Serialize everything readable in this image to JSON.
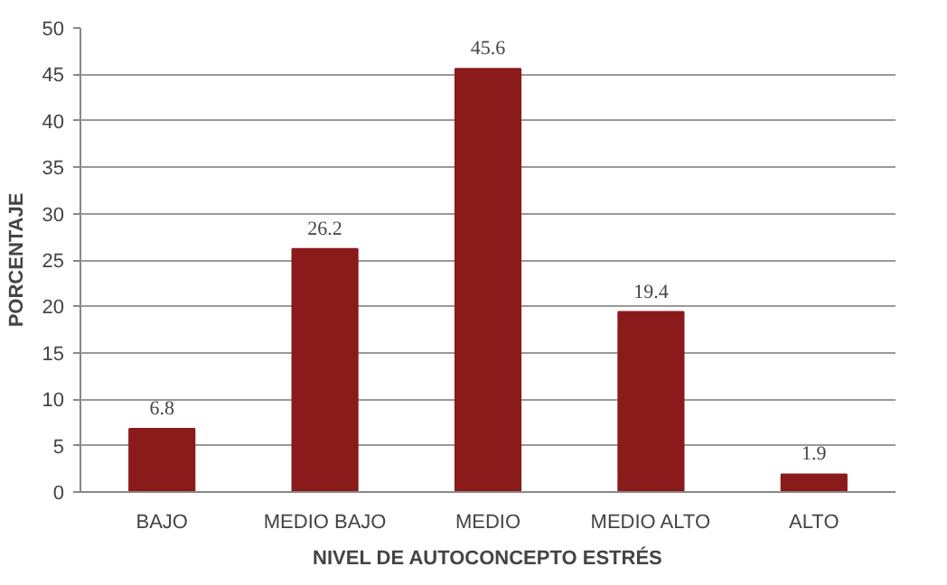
{
  "chart_data": {
    "type": "bar",
    "xlabel": "NIVEL DE AUTOCONCEPTO ESTRÉS",
    "ylabel": "PORCENTAJE",
    "categories": [
      "BAJO",
      "MEDIO BAJO",
      "MEDIO",
      "MEDIO ALTO",
      "ALTO"
    ],
    "values": [
      6.8,
      26.2,
      45.6,
      19.4,
      1.9
    ],
    "color": "#8b1a1a",
    "ylim": [
      0,
      50
    ],
    "yticks": [
      0,
      5,
      10,
      15,
      20,
      25,
      30,
      35,
      40,
      45,
      50
    ],
    "grid": "y",
    "data_labels": true
  }
}
